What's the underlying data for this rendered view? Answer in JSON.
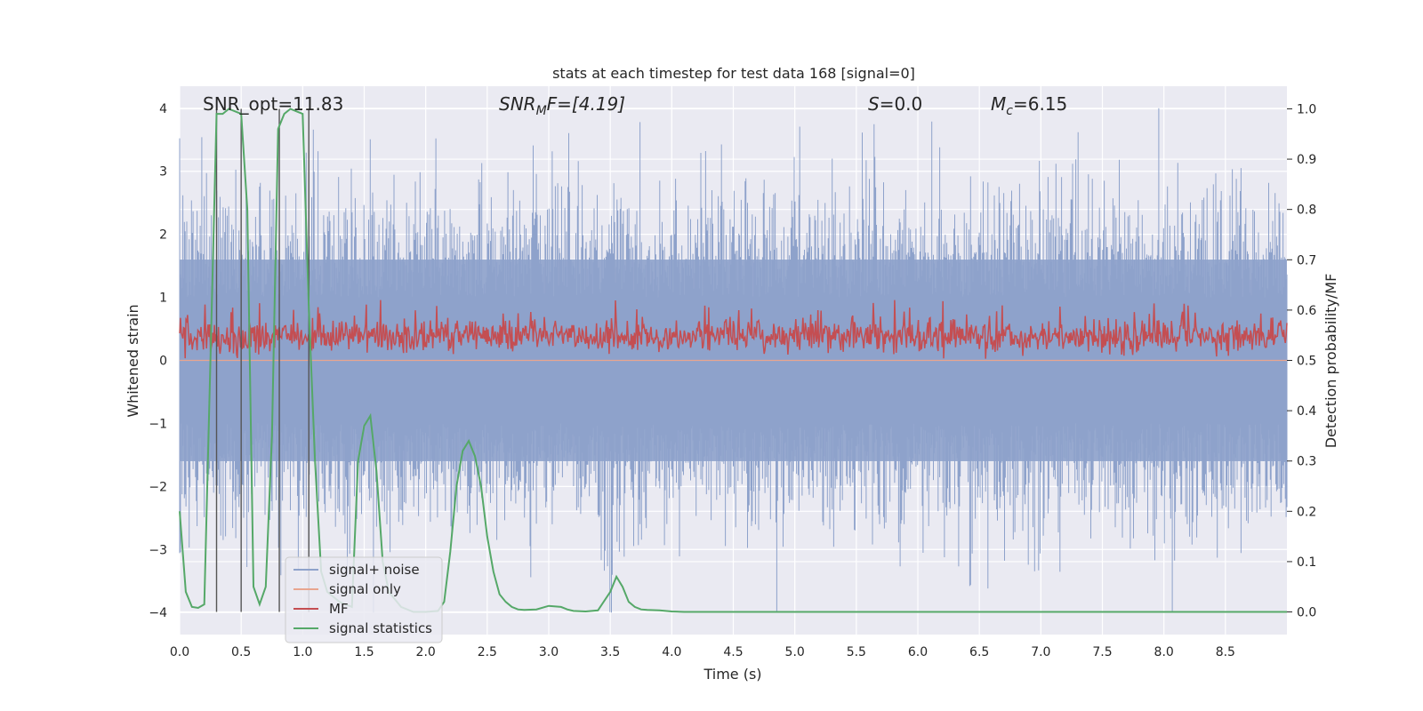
{
  "chart_data": {
    "type": "line",
    "title": "stats at each timestep for test data 168 [signal=0]",
    "xlabel": "Time (s)",
    "ylabel": "Whitened strain",
    "y2label": "Detection probability/MF",
    "xlim": [
      0.0,
      9.0
    ],
    "ylim": [
      -4.35,
      4.35
    ],
    "y2lim": [
      -0.045,
      1.045
    ],
    "xticks": [
      "0.0",
      "0.5",
      "1.0",
      "1.5",
      "2.0",
      "2.5",
      "3.0",
      "3.5",
      "4.0",
      "4.5",
      "5.0",
      "5.5",
      "6.0",
      "6.5",
      "7.0",
      "7.5",
      "8.0",
      "8.5"
    ],
    "yticks": [
      "4",
      "3",
      "2",
      "1",
      "0",
      "−1",
      "−2",
      "−3",
      "−4"
    ],
    "y2ticks": [
      "1.0",
      "0.9",
      "0.8",
      "0.7",
      "0.6",
      "0.5",
      "0.4",
      "0.3",
      "0.2",
      "0.1",
      "0.0"
    ],
    "grid": true,
    "legend_position": "bottom-left",
    "annotations": {
      "snr_opt": "SNR_opt=11.83",
      "snr_mf_base": "SNR",
      "snr_mf_sub": "M",
      "snr_mf_tail": "F=[4.19]",
      "s_label": "S",
      "s_value": "=0.0",
      "mc_base": "M",
      "mc_sub": "c",
      "mc_value": "=6.15"
    },
    "vlines_x": [
      0.3,
      0.5,
      0.81,
      1.05
    ],
    "series": [
      {
        "name": "signal+ noise",
        "axis": "left",
        "color": "#8ea2cb",
        "description_range": [
          -4.0,
          4.0
        ],
        "typical_band": [
          -1.6,
          1.6
        ]
      },
      {
        "name": "signal only",
        "axis": "left",
        "color": "#e8a58f",
        "values_constant": 0.0
      },
      {
        "name": "MF",
        "axis": "right",
        "color": "#c44e52",
        "typical_band": [
          0.5,
          0.62
        ]
      },
      {
        "name": "signal statistics",
        "axis": "right",
        "color": "#55a868",
        "x": [
          0.0,
          0.05,
          0.1,
          0.15,
          0.2,
          0.25,
          0.3,
          0.35,
          0.4,
          0.45,
          0.5,
          0.55,
          0.6,
          0.65,
          0.7,
          0.75,
          0.8,
          0.85,
          0.9,
          0.95,
          1.0,
          1.05,
          1.1,
          1.15,
          1.2,
          1.3,
          1.4,
          1.45,
          1.5,
          1.55,
          1.6,
          1.65,
          1.7,
          1.8,
          1.9,
          2.0,
          2.1,
          2.15,
          2.2,
          2.25,
          2.3,
          2.35,
          2.4,
          2.45,
          2.5,
          2.55,
          2.6,
          2.65,
          2.7,
          2.75,
          2.8,
          2.9,
          3.0,
          3.1,
          3.15,
          3.2,
          3.3,
          3.4,
          3.5,
          3.55,
          3.6,
          3.65,
          3.7,
          3.75,
          3.8,
          3.9,
          4.0,
          4.1,
          4.2,
          4.5,
          5.0,
          6.0,
          7.0,
          8.0,
          9.0
        ],
        "y": [
          0.2,
          0.04,
          0.01,
          0.008,
          0.015,
          0.5,
          0.99,
          0.99,
          1.0,
          0.995,
          0.99,
          0.8,
          0.05,
          0.015,
          0.05,
          0.35,
          0.96,
          0.99,
          1.0,
          0.995,
          0.99,
          0.6,
          0.3,
          0.08,
          0.04,
          0.02,
          0.01,
          0.3,
          0.37,
          0.39,
          0.28,
          0.1,
          0.04,
          0.01,
          0.0,
          0.0,
          0.002,
          0.02,
          0.12,
          0.25,
          0.32,
          0.34,
          0.31,
          0.25,
          0.15,
          0.08,
          0.035,
          0.02,
          0.01,
          0.005,
          0.004,
          0.005,
          0.012,
          0.01,
          0.005,
          0.002,
          0.001,
          0.003,
          0.04,
          0.07,
          0.05,
          0.02,
          0.01,
          0.005,
          0.004,
          0.003,
          0.001,
          0.0,
          0.0,
          0.0,
          0.0,
          0.0,
          0.0,
          0.0,
          0.0
        ]
      }
    ]
  }
}
